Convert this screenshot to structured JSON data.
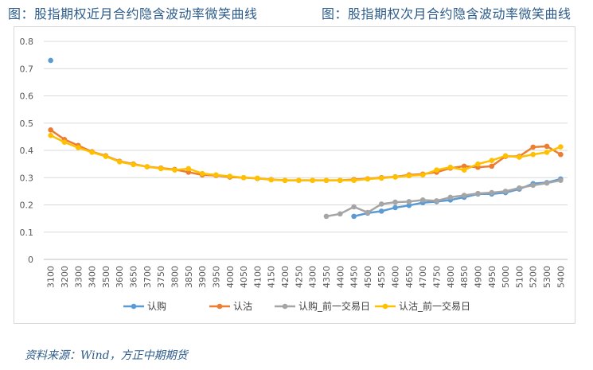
{
  "figure": {
    "title_left": "图：股指期权近月合约隐含波动率微笑曲线",
    "title_right": "图：股指期权次月合约隐含波动率微笑曲线",
    "source": "资料来源：Wind，方正中期期货"
  },
  "colors": {
    "series": [
      "#5b9bd5",
      "#ed7d31",
      "#a5a5a5",
      "#ffc000"
    ],
    "grid": "#d9d9d9",
    "axis_text": "#595959"
  },
  "chart_data": {
    "type": "line",
    "title": "",
    "xlabel": "",
    "ylabel": "",
    "ylim": [
      0,
      0.8
    ],
    "yticks": [
      "0",
      "0.1",
      "0.2",
      "0.3",
      "0.4",
      "0.5",
      "0.6",
      "0.7",
      "0.8"
    ],
    "grid": "horizontal",
    "legend_position": "bottom",
    "categories": [
      "3100",
      "3200",
      "3300",
      "3400",
      "3500",
      "3600",
      "3650",
      "3700",
      "3750",
      "3800",
      "3850",
      "3900",
      "3950",
      "4000",
      "4050",
      "4100",
      "4150",
      "4200",
      "4250",
      "4300",
      "4350",
      "4400",
      "4450",
      "4500",
      "4550",
      "4600",
      "4650",
      "4700",
      "4750",
      "4800",
      "4850",
      "4900",
      "4950",
      "5000",
      "5100",
      "5200",
      "5300",
      "5400"
    ],
    "series": [
      {
        "name": "认购",
        "values": [
          0.73,
          null,
          null,
          null,
          null,
          null,
          null,
          null,
          null,
          null,
          null,
          null,
          null,
          null,
          null,
          null,
          null,
          null,
          null,
          null,
          null,
          null,
          0.158,
          0.17,
          0.177,
          0.19,
          0.198,
          0.208,
          0.212,
          0.218,
          0.228,
          0.24,
          0.24,
          0.245,
          0.258,
          0.278,
          0.282,
          0.295
        ]
      },
      {
        "name": "认沽",
        "values": [
          0.475,
          0.44,
          0.418,
          0.395,
          0.38,
          0.36,
          0.35,
          0.34,
          0.335,
          0.33,
          0.32,
          0.31,
          0.308,
          0.302,
          0.3,
          0.297,
          0.293,
          0.29,
          0.29,
          0.29,
          0.29,
          0.29,
          0.293,
          0.296,
          0.3,
          0.303,
          0.31,
          0.313,
          0.32,
          0.335,
          0.342,
          0.338,
          0.342,
          0.378,
          0.378,
          0.412,
          0.415,
          0.385
        ]
      },
      {
        "name": "认购_前一交易日",
        "values": [
          null,
          null,
          null,
          null,
          null,
          null,
          null,
          null,
          null,
          null,
          null,
          null,
          null,
          null,
          null,
          null,
          null,
          null,
          null,
          null,
          0.158,
          0.167,
          0.193,
          0.172,
          0.203,
          0.21,
          0.212,
          0.218,
          0.215,
          0.228,
          0.235,
          0.242,
          0.245,
          0.25,
          0.262,
          0.272,
          0.28,
          0.29
        ]
      },
      {
        "name": "认沽_前一交易日",
        "values": [
          0.455,
          0.43,
          0.41,
          0.393,
          0.378,
          0.358,
          0.348,
          0.34,
          0.333,
          0.328,
          0.333,
          0.315,
          0.31,
          0.305,
          0.3,
          0.298,
          0.292,
          0.29,
          0.29,
          0.29,
          0.29,
          0.29,
          0.29,
          0.295,
          0.298,
          0.302,
          0.307,
          0.31,
          0.328,
          0.338,
          0.328,
          0.35,
          0.363,
          0.38,
          0.375,
          0.385,
          0.393,
          0.413
        ]
      }
    ]
  }
}
